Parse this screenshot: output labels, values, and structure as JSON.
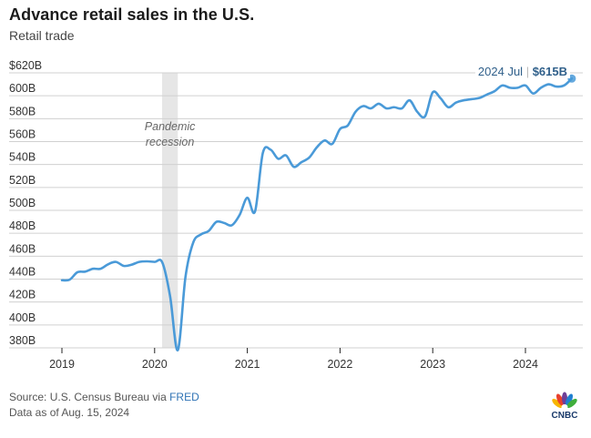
{
  "header": {
    "title": "Advance retail sales in the U.S.",
    "subtitle": "Retail trade"
  },
  "annotation": {
    "recession_label_line1": "Pandemic",
    "recession_label_line2": "recession",
    "last_point_label": "2024 Jul",
    "last_point_value": "$615B"
  },
  "footer": {
    "source_prefix": "Source: U.S. Census Bureau via ",
    "source_link": "FRED",
    "data_as_of": "Data as of Aug. 15, 2024"
  },
  "logo": {
    "text": "CNBC"
  },
  "colors": {
    "line": "#4a9ad8",
    "recession": "#e6e6e6",
    "grid": "#d0d0d0",
    "label": "#2f5f8a"
  },
  "chart_data": {
    "type": "line",
    "title": "Advance retail sales in the U.S.",
    "subtitle": "Retail trade",
    "xlabel": "",
    "ylabel": "",
    "ylim": [
      380,
      620
    ],
    "xlim": [
      2019.0,
      2024.5
    ],
    "grid": true,
    "y_ticks": [
      380,
      400,
      420,
      440,
      460,
      480,
      500,
      520,
      540,
      560,
      580,
      600,
      620
    ],
    "y_tick_labels": [
      "380B",
      "400B",
      "420B",
      "440B",
      "460B",
      "480B",
      "500B",
      "520B",
      "540B",
      "560B",
      "580B",
      "600B",
      "$620B"
    ],
    "x_ticks": [
      2019,
      2020,
      2021,
      2022,
      2023,
      2024
    ],
    "x_tick_labels": [
      "2019",
      "2020",
      "2021",
      "2022",
      "2023",
      "2024"
    ],
    "recession": {
      "label": "Pandemic recession",
      "start": 2020.08,
      "end": 2020.25
    },
    "series": [
      {
        "name": "Retail trade",
        "units": "billions USD",
        "x": [
          2019.0,
          2019.083,
          2019.167,
          2019.25,
          2019.333,
          2019.417,
          2019.5,
          2019.583,
          2019.667,
          2019.75,
          2019.833,
          2019.917,
          2020.0,
          2020.083,
          2020.167,
          2020.25,
          2020.333,
          2020.417,
          2020.5,
          2020.583,
          2020.667,
          2020.75,
          2020.833,
          2020.917,
          2021.0,
          2021.083,
          2021.167,
          2021.25,
          2021.333,
          2021.417,
          2021.5,
          2021.583,
          2021.667,
          2021.75,
          2021.833,
          2021.917,
          2022.0,
          2022.083,
          2022.167,
          2022.25,
          2022.333,
          2022.417,
          2022.5,
          2022.583,
          2022.667,
          2022.75,
          2022.833,
          2022.917,
          2023.0,
          2023.083,
          2023.167,
          2023.25,
          2023.333,
          2023.417,
          2023.5,
          2023.583,
          2023.667,
          2023.75,
          2023.833,
          2023.917,
          2024.0,
          2024.083,
          2024.167,
          2024.25,
          2024.333,
          2024.417,
          2024.5
        ],
        "values": [
          439,
          439.5,
          446,
          446.5,
          449,
          449,
          453,
          455,
          451.5,
          452.5,
          455,
          455.5,
          455,
          454.5,
          425,
          378,
          442,
          472,
          479,
          482,
          490,
          489,
          487,
          496,
          511,
          499,
          550,
          553,
          545,
          548,
          538,
          542,
          546,
          555,
          561,
          558,
          571,
          574,
          586,
          591,
          589,
          593,
          589,
          590,
          589,
          596,
          586,
          582,
          603,
          598,
          590,
          594,
          596,
          597,
          598,
          601,
          604,
          609,
          607,
          607,
          609,
          602,
          607,
          610,
          608,
          609,
          615
        ]
      }
    ],
    "last_point": {
      "x_label": "2024 Jul",
      "value": 615,
      "value_label": "$615B"
    }
  }
}
